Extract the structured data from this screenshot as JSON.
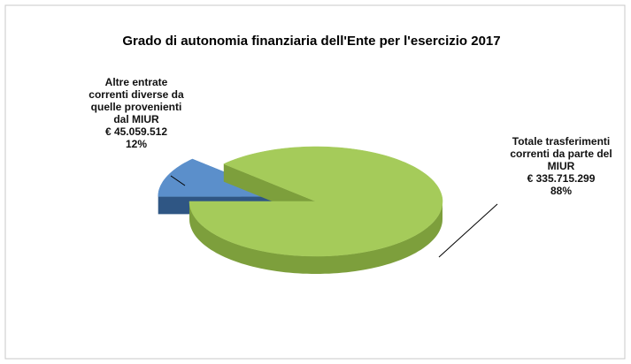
{
  "chart_data": {
    "type": "pie",
    "title": "Grado di autonomia finanziaria  dell'Ente per l'esercizio 2017",
    "categories": [
      "Altre entrate correnti diverse da quelle provenienti dal MIUR",
      "Totale trasferimenti correnti da parte del MIUR"
    ],
    "amount_labels": [
      "€ 45.059.512",
      "€ 335.715.299"
    ],
    "values": [
      12,
      88
    ],
    "value_labels": [
      "12%",
      "88%"
    ],
    "colors": [
      "#5b8fcb",
      "#a5cb5a"
    ],
    "side_colors": [
      "#2f5684",
      "#7d9f3c"
    ]
  }
}
